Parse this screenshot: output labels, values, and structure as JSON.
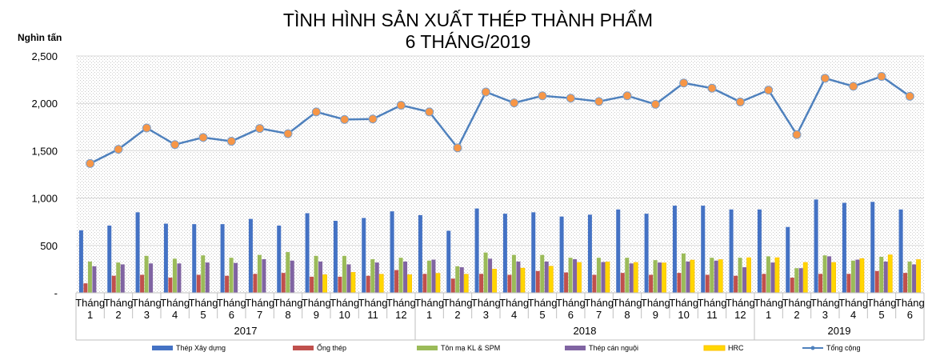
{
  "chart_data": {
    "type": "bar",
    "title_lines": [
      "TÌNH HÌNH SẢN XUẤT THÉP THÀNH PHẨM",
      "6 THÁNG/2019"
    ],
    "ylabel": "Nghìn tấn",
    "ylim": [
      0,
      2500
    ],
    "yticks": [
      {
        "value": 0,
        "label": "-"
      },
      {
        "value": 500,
        "label": "500"
      },
      {
        "value": 1000,
        "label": "1,000"
      },
      {
        "value": 1500,
        "label": "1,500"
      },
      {
        "value": 2000,
        "label": "2,000"
      },
      {
        "value": 2500,
        "label": "2,500"
      }
    ],
    "grid": "horizontal",
    "legend_position": "bottom",
    "month_word": "Tháng",
    "categories": [
      "1",
      "2",
      "3",
      "4",
      "5",
      "6",
      "7",
      "8",
      "9",
      "10",
      "11",
      "12",
      "1",
      "2",
      "3",
      "4",
      "5",
      "6",
      "7",
      "8",
      "9",
      "10",
      "11",
      "12",
      "1",
      "2",
      "3",
      "4",
      "5",
      "6"
    ],
    "groups": [
      {
        "label": "2017",
        "count": 12
      },
      {
        "label": "2018",
        "count": 12
      },
      {
        "label": "2019",
        "count": 6
      }
    ],
    "series": [
      {
        "name": "Thép Xây dựng",
        "kind": "bar",
        "color": "#4472c4",
        "values": [
          660,
          710,
          850,
          730,
          725,
          725,
          780,
          710,
          840,
          760,
          790,
          860,
          820,
          655,
          890,
          835,
          850,
          805,
          825,
          880,
          835,
          920,
          920,
          880,
          880,
          695,
          985,
          950,
          960,
          880
        ]
      },
      {
        "name": "Ống thép",
        "kind": "bar",
        "color": "#c0504d",
        "values": [
          100,
          180,
          190,
          160,
          190,
          180,
          200,
          210,
          170,
          170,
          180,
          240,
          200,
          150,
          200,
          190,
          230,
          215,
          190,
          210,
          190,
          210,
          190,
          180,
          200,
          160,
          200,
          200,
          230,
          210
        ]
      },
      {
        "name": "Tôn mạ KL & SPM",
        "kind": "bar",
        "color": "#9bbb59",
        "values": [
          330,
          320,
          390,
          360,
          395,
          370,
          400,
          430,
          390,
          390,
          355,
          370,
          340,
          280,
          425,
          400,
          400,
          370,
          370,
          370,
          345,
          415,
          370,
          370,
          385,
          260,
          395,
          340,
          380,
          330
        ]
      },
      {
        "name": "Thép cán nguội",
        "kind": "bar",
        "color": "#8064a2",
        "values": [
          280,
          300,
          310,
          310,
          320,
          315,
          355,
          340,
          330,
          300,
          320,
          330,
          350,
          270,
          360,
          330,
          330,
          355,
          325,
          310,
          320,
          330,
          340,
          270,
          320,
          260,
          385,
          350,
          330,
          300
        ]
      },
      {
        "name": "HRC",
        "kind": "bar",
        "color": "#ffd700",
        "values": [
          null,
          null,
          null,
          null,
          null,
          null,
          null,
          null,
          190,
          215,
          195,
          190,
          205,
          195,
          250,
          260,
          280,
          320,
          325,
          320,
          315,
          345,
          350,
          370,
          370,
          320,
          320,
          360,
          400,
          350
        ]
      },
      {
        "name": "Tổng cộng",
        "kind": "line",
        "color": "#4f81bd",
        "marker_color": "#f79646",
        "values": [
          1365,
          1515,
          1740,
          1565,
          1640,
          1600,
          1735,
          1680,
          1910,
          1830,
          1835,
          1980,
          1910,
          1530,
          2120,
          2005,
          2080,
          2055,
          2020,
          2080,
          1990,
          2215,
          2160,
          2015,
          2140,
          1670,
          2265,
          2180,
          2285,
          2075
        ]
      }
    ]
  }
}
